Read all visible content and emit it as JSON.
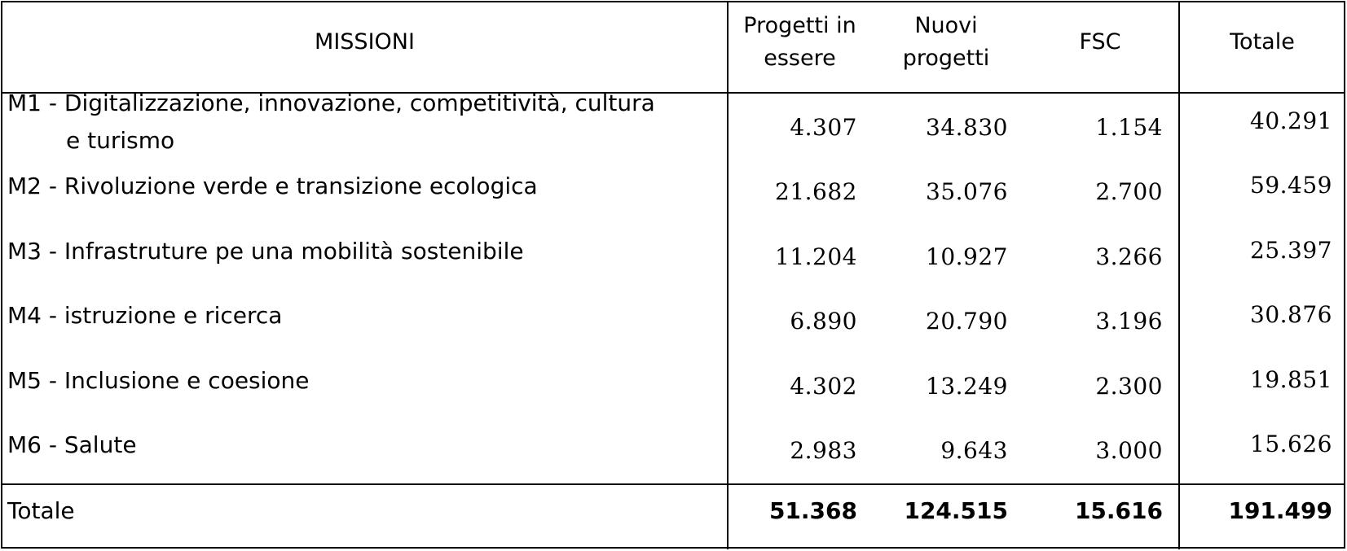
{
  "headers": {
    "missioni": "MISSIONI",
    "in_essere": "Progetti in essere",
    "nuovi": "Nuovi progetti",
    "fsc": "FSC",
    "totale": "Totale"
  },
  "rows": [
    {
      "mission": "M1 - Digitalizzazione, innovazione,  competitività, cultura",
      "mission_cont": "e turismo",
      "in_essere": "4.307",
      "nuovi": "34.830",
      "fsc": "1.154",
      "totale": "40.291"
    },
    {
      "mission": "M2 - Rivoluzione verde e transizione ecologica",
      "in_essere": "21.682",
      "nuovi": "35.076",
      "fsc": "2.700",
      "totale": "59.459"
    },
    {
      "mission": "M3 - Infrastruture pe una mobilità sostenibile",
      "in_essere": "11.204",
      "nuovi": "10.927",
      "fsc": "3.266",
      "totale": "25.397"
    },
    {
      "mission": "M4 - istruzione e ricerca",
      "in_essere": "6.890",
      "nuovi": "20.790",
      "fsc": "3.196",
      "totale": "30.876"
    },
    {
      "mission": "M5 - Inclusione e coesione",
      "in_essere": "4.302",
      "nuovi": "13.249",
      "fsc": "2.300",
      "totale": "19.851"
    },
    {
      "mission": "M6 - Salute",
      "in_essere": "2.983",
      "nuovi": "9.643",
      "fsc": "3.000",
      "totale": "15.626"
    }
  ],
  "total": {
    "label": "Totale",
    "in_essere": "51.368",
    "nuovi": "124.515",
    "fsc": "15.616",
    "totale": "191.499"
  }
}
